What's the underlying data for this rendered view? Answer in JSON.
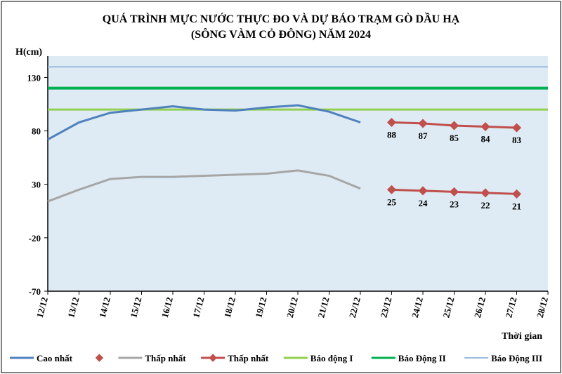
{
  "chart": {
    "type": "line",
    "title_line1": "QUÁ TRÌNH MỰC NƯỚC THỰC ĐO VÀ DỰ BÁO TRẠM GÒ DẦU HẠ",
    "title_line2": "(SÔNG VÀM CỎ ĐÔNG) NĂM 2024",
    "title_fontsize": 16,
    "ylabel": "H(cm)",
    "xlabel": "Thời gian",
    "label_fontsize": 14,
    "tick_fontsize": 13,
    "legend_fontsize": 13,
    "data_label_fontsize": 13,
    "background": "#ffffff",
    "plot_background": "#deebf4",
    "axis_color": "#000000",
    "x_categories": [
      "12/12",
      "13/12",
      "14/12",
      "15/12",
      "16/12",
      "17/12",
      "18/12",
      "19/12",
      "20/12",
      "21/12",
      "22/12",
      "23/12",
      "24/12",
      "25/12",
      "26/12",
      "27/12",
      "28/12"
    ],
    "ylim": [
      -70,
      150
    ],
    "yticks": [
      -70,
      -20,
      30,
      80,
      130
    ],
    "legend": {
      "items": [
        {
          "label": "Cao nhất",
          "type": "line",
          "color": "#4f81bd",
          "width": 3,
          "marker": "dash"
        },
        {
          "label": "",
          "type": "marker",
          "color": "#c0504d",
          "marker": "diamond"
        },
        {
          "label": "Thấp nhất",
          "type": "line",
          "color": "#a6a6a6",
          "width": 3,
          "marker": "dash"
        },
        {
          "label": "Thấp nhất",
          "type": "line-marker",
          "color": "#c0504d",
          "width": 3,
          "marker": "diamond"
        },
        {
          "label": "Báo động I",
          "type": "line",
          "color": "#92d050",
          "width": 3
        },
        {
          "label": "Báo Động II",
          "type": "line",
          "color": "#00b050",
          "width": 3
        },
        {
          "label": "Báo Động III",
          "type": "line",
          "color": "#9bbcdd",
          "width": 2
        }
      ]
    },
    "series": {
      "bao_dong_iii": {
        "value": 140,
        "color": "#9bbcdd",
        "width": 2
      },
      "bao_dong_ii": {
        "value": 120,
        "color": "#00b050",
        "width": 4
      },
      "bao_dong_i": {
        "value": 100,
        "color": "#92d050",
        "width": 3
      },
      "cao_nhat": {
        "color": "#4f81bd",
        "width": 3,
        "x": [
          "12/12",
          "13/12",
          "14/12",
          "15/12",
          "16/12",
          "17/12",
          "18/12",
          "19/12",
          "20/12",
          "21/12",
          "22/12"
        ],
        "y": [
          72,
          88,
          97,
          100,
          103,
          100,
          99,
          102,
          104,
          98,
          88
        ]
      },
      "thap_nhat": {
        "color": "#a6a6a6",
        "width": 3,
        "x": [
          "12/12",
          "13/12",
          "14/12",
          "15/12",
          "16/12",
          "17/12",
          "18/12",
          "19/12",
          "20/12",
          "21/12",
          "22/12"
        ],
        "y": [
          14,
          25,
          35,
          37,
          37,
          38,
          39,
          40,
          43,
          38,
          26
        ]
      },
      "forecast_high": {
        "color": "#c0504d",
        "width": 3,
        "marker": "diamond",
        "marker_size": 7,
        "x": [
          "23/12",
          "24/12",
          "25/12",
          "26/12",
          "27/12"
        ],
        "y": [
          88,
          87,
          85,
          84,
          83
        ],
        "labels": [
          "88",
          "87",
          "85",
          "84",
          "83"
        ]
      },
      "forecast_low": {
        "color": "#c0504d",
        "width": 3,
        "marker": "diamond",
        "marker_size": 7,
        "x": [
          "23/12",
          "24/12",
          "25/12",
          "26/12",
          "27/12"
        ],
        "y": [
          25,
          24,
          23,
          22,
          21
        ],
        "labels": [
          "25",
          "24",
          "23",
          "22",
          "21"
        ]
      }
    }
  }
}
